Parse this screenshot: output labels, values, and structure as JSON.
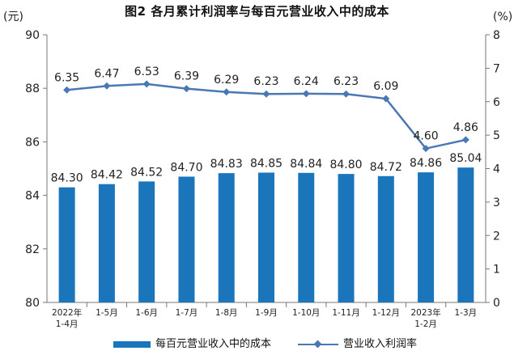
{
  "chart_data": {
    "type": "bar+line",
    "title": "图2  各月累计利润率与每百元营业收入中的成本",
    "left_axis_unit": "(元)",
    "right_axis_unit": "(%)",
    "categories": [
      [
        "2022年",
        "1-4月"
      ],
      [
        "1-5月"
      ],
      [
        "1-6月"
      ],
      [
        "1-7月"
      ],
      [
        "1-8月"
      ],
      [
        "1-9月"
      ],
      [
        "1-10月"
      ],
      [
        "1-11月"
      ],
      [
        "1-12月"
      ],
      [
        "2023年",
        "1-2月"
      ],
      [
        "1-3月"
      ]
    ],
    "series": [
      {
        "name": "每百元营业收入中的成本",
        "type": "bar",
        "axis": "left",
        "color": "#1b75bb",
        "values": [
          84.3,
          84.42,
          84.52,
          84.7,
          84.83,
          84.85,
          84.84,
          84.8,
          84.72,
          84.86,
          85.04
        ],
        "labels": [
          "84.30",
          "84.42",
          "84.52",
          "84.70",
          "84.83",
          "84.85",
          "84.84",
          "84.80",
          "84.72",
          "84.86",
          "85.04"
        ]
      },
      {
        "name": "营业收入利润率",
        "type": "line",
        "axis": "right",
        "color": "#4a78b5",
        "values": [
          6.35,
          6.47,
          6.53,
          6.39,
          6.29,
          6.23,
          6.24,
          6.23,
          6.09,
          4.6,
          4.86
        ],
        "labels": [
          "6.35",
          "6.47",
          "6.53",
          "6.39",
          "6.29",
          "6.23",
          "6.24",
          "6.23",
          "6.09",
          "4.60",
          "4.86"
        ]
      }
    ],
    "left_axis": {
      "min": 80,
      "max": 90,
      "ticks": [
        "80",
        "82",
        "84",
        "86",
        "88",
        "90"
      ]
    },
    "right_axis": {
      "min": 0,
      "max": 8,
      "ticks": [
        "0",
        "1",
        "2",
        "3",
        "4",
        "5",
        "6",
        "7",
        "8"
      ]
    },
    "grid": false,
    "legend_position": "bottom"
  }
}
